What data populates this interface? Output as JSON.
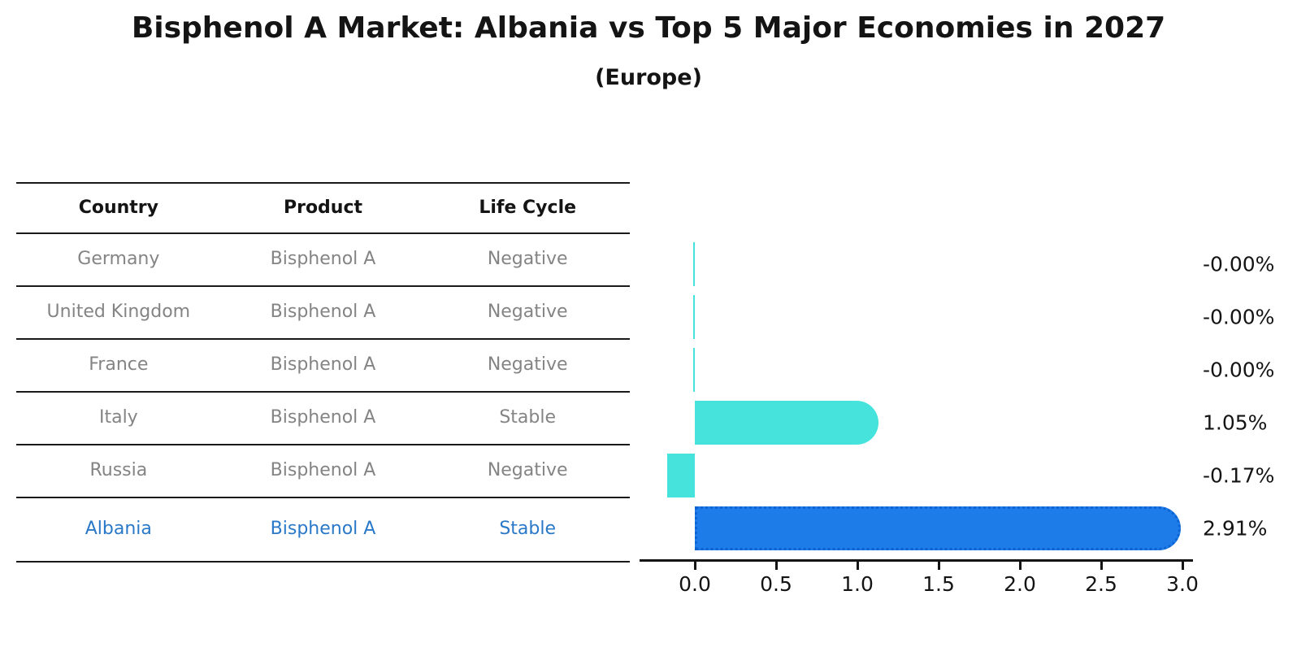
{
  "title": "Bisphenol A Market: Albania vs Top 5 Major Economies in 2027",
  "subtitle": "(Europe)",
  "table": {
    "headers": [
      "Country",
      "Product",
      "Life Cycle"
    ],
    "rows": [
      {
        "country": "Germany",
        "product": "Bisphenol A",
        "life_cycle": "Negative",
        "highlighted": false
      },
      {
        "country": "United Kingdom",
        "product": "Bisphenol A",
        "life_cycle": "Negative",
        "highlighted": false
      },
      {
        "country": "France",
        "product": "Bisphenol A",
        "life_cycle": "Negative",
        "highlighted": false
      },
      {
        "country": "Italy",
        "product": "Bisphenol A",
        "life_cycle": "Stable",
        "highlighted": false
      },
      {
        "country": "Russia",
        "product": "Bisphenol A",
        "life_cycle": "Negative",
        "highlighted": false
      },
      {
        "country": "Albania",
        "product": "Bisphenol A",
        "life_cycle": "Stable",
        "highlighted": true
      }
    ]
  },
  "chart_data": {
    "type": "bar",
    "orientation": "horizontal",
    "title": "Bisphenol A Market: Albania vs Top 5 Major Economies in 2027",
    "subtitle": "(Europe)",
    "categories": [
      "Germany",
      "United Kingdom",
      "France",
      "Italy",
      "Russia",
      "Albania"
    ],
    "values": [
      -0.0,
      -0.0,
      -0.0,
      1.05,
      -0.17,
      2.91
    ],
    "value_labels": [
      "-0.00%",
      "-0.00%",
      "-0.00%",
      "1.05%",
      "-0.17%",
      "2.91%"
    ],
    "xlabel": "",
    "ylabel": "",
    "xlim": [
      -0.34,
      3.06
    ],
    "xticks": [
      0.0,
      0.5,
      1.0,
      1.5,
      2.0,
      2.5,
      3.0
    ],
    "xtick_labels": [
      "0.0",
      "0.5",
      "1.0",
      "1.5",
      "2.0",
      "2.5",
      "3.0"
    ],
    "grid": false,
    "legend": false,
    "bar_colors": [
      "#46e2dc",
      "#46e2dc",
      "#46e2dc",
      "#46e2dc",
      "#46e2dc",
      "#1e7ce8"
    ],
    "highlight_index": 5,
    "highlight_border_color": "#0e63d4"
  },
  "colors": {
    "bar_default": "#46e2dc",
    "bar_highlight": "#1e7ce8",
    "highlight_text": "#2a78c8",
    "row_text": "#848484",
    "header_text": "#141414",
    "axis_text": "#141414"
  }
}
